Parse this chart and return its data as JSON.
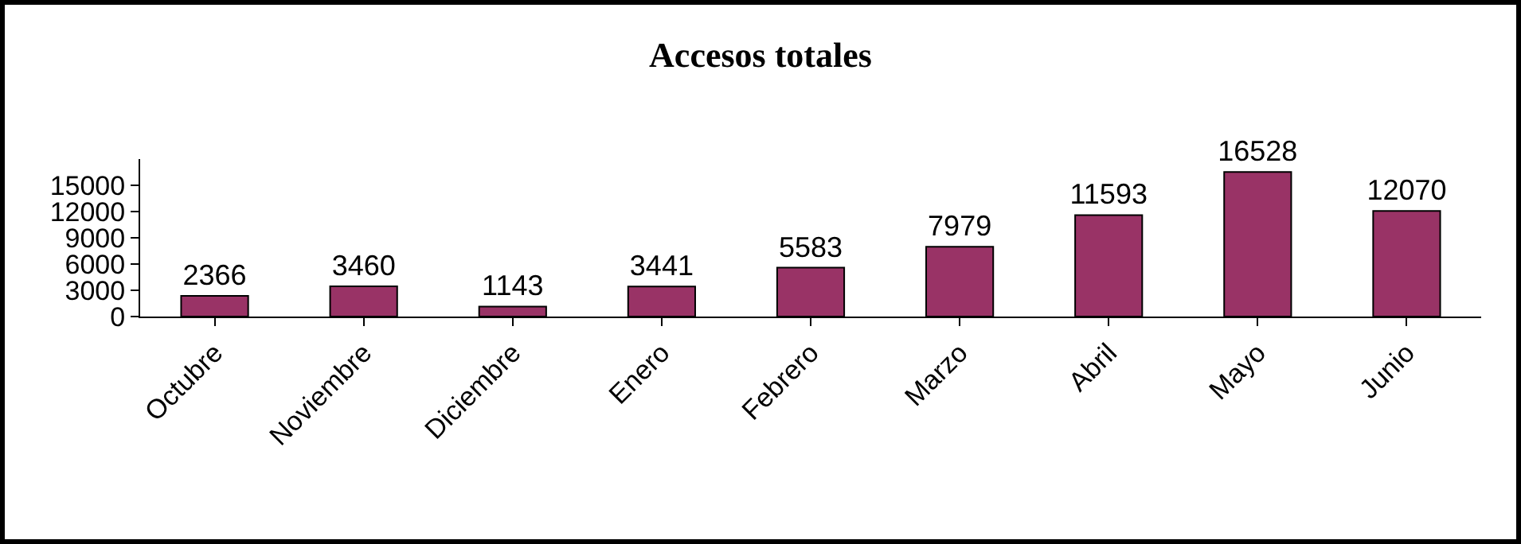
{
  "chart_data": {
    "type": "bar",
    "title": "Accesos totales",
    "categories": [
      "Octubre",
      "Noviembre",
      "Diciembre",
      "Enero",
      "Febrero",
      "Marzo",
      "Abril",
      "Mayo",
      "Junio"
    ],
    "values": [
      2366,
      3460,
      1143,
      3441,
      5583,
      7979,
      11593,
      16528,
      12070
    ],
    "color": "#993366",
    "ylim": [
      0,
      18000
    ],
    "yticks": [
      0,
      3000,
      6000,
      9000,
      12000,
      15000
    ],
    "grid": false,
    "data_labels": true
  }
}
